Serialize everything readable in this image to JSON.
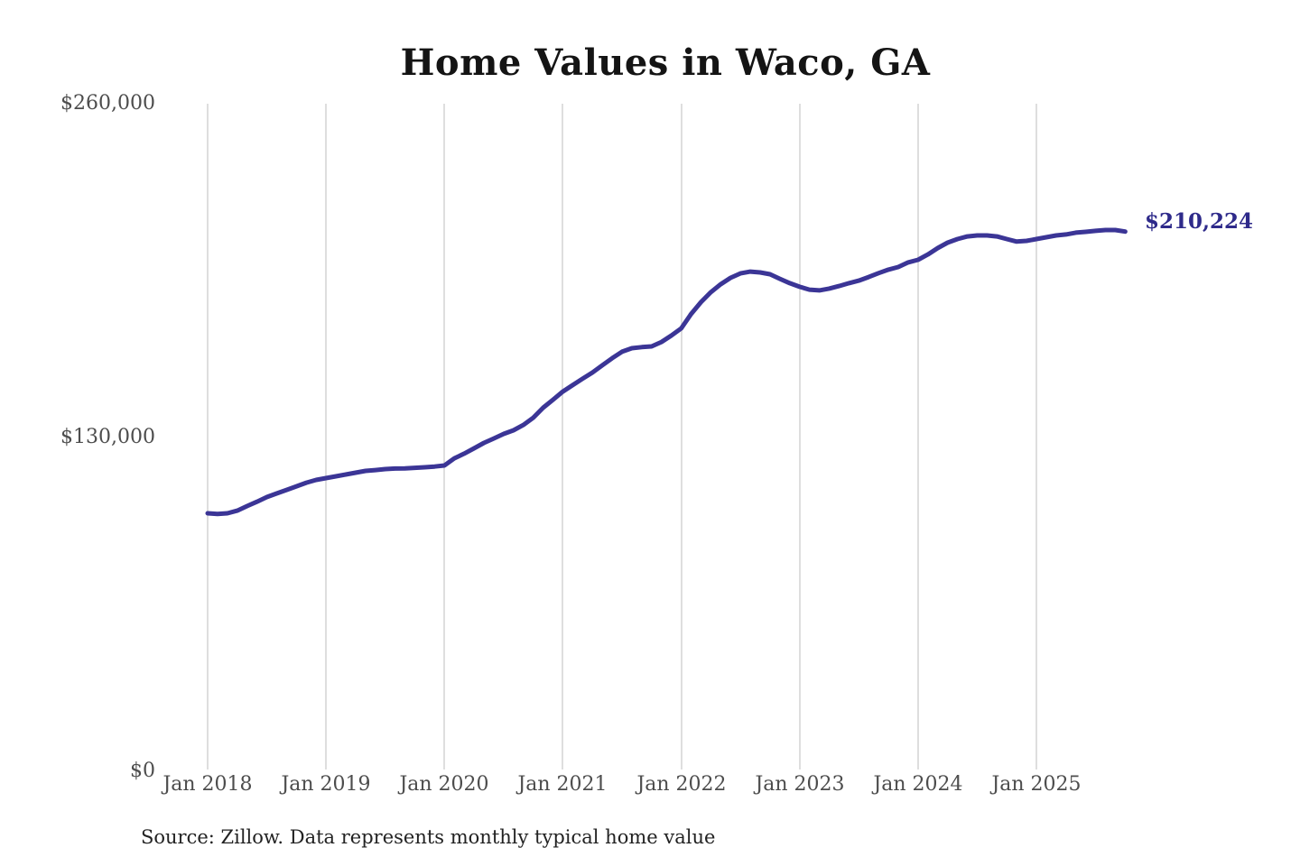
{
  "chart_data": {
    "type": "line",
    "title": "Home Values in Waco, GA",
    "series_name": "Monthly typical home value",
    "x_start_month": "2018-01",
    "x_end_month": "2025-10",
    "x_interval": "monthly",
    "values": [
      100500,
      100200,
      100500,
      101500,
      103300,
      105000,
      106800,
      108200,
      109600,
      111000,
      112400,
      113500,
      114200,
      114900,
      115600,
      116300,
      117000,
      117300,
      117700,
      117900,
      118000,
      118200,
      118400,
      118700,
      119100,
      121900,
      123700,
      125800,
      127900,
      129600,
      131400,
      132800,
      134900,
      137700,
      141600,
      144700,
      147900,
      150400,
      152900,
      155300,
      158100,
      160900,
      163400,
      164800,
      165200,
      165500,
      167200,
      169700,
      172500,
      178100,
      182700,
      186600,
      189700,
      192200,
      193900,
      194600,
      194300,
      193600,
      191800,
      190100,
      188700,
      187600,
      187300,
      188000,
      189000,
      190100,
      191100,
      192500,
      194000,
      195400,
      196400,
      198200,
      199200,
      201300,
      203800,
      205900,
      207300,
      208300,
      208700,
      208700,
      208300,
      207300,
      206300,
      206600,
      207300,
      208000,
      208700,
      209100,
      209800,
      210100,
      210500,
      210800,
      210800,
      210224
    ],
    "x_tick_labels": [
      "Jan 2018",
      "Jan 2019",
      "Jan 2020",
      "Jan 2021",
      "Jan 2022",
      "Jan 2023",
      "Jan 2024",
      "Jan 2025"
    ],
    "y_tick_labels": [
      "$0",
      "$130,000",
      "$260,000"
    ],
    "y_tick_values": [
      0,
      130000,
      260000
    ],
    "ylim": [
      0,
      260000
    ],
    "grid": "vertical-yearly-only",
    "legend": "none",
    "final_value": 210224,
    "final_value_label": "$210,224",
    "source_note": "Source: Zillow. Data represents monthly typical home value",
    "colors": {
      "line": "#3b3596",
      "annotation": "#2e2a8a",
      "gridline": "#cccccc",
      "axis_text": "#4d4d4d",
      "title_text": "#141414",
      "source_text": "#222222",
      "background": "#ffffff"
    }
  }
}
